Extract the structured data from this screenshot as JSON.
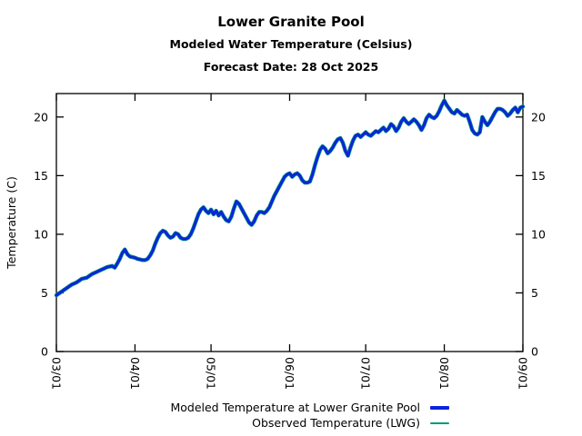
{
  "header": {
    "title": "Lower Granite Pool",
    "subtitle": "Modeled Water Temperature (Celsius)",
    "forecast_date_line": "Forecast Date: 28 Oct 2025"
  },
  "chart_data": {
    "type": "line",
    "title": "Lower Granite Pool",
    "subtitle": "Modeled Water Temperature (Celsius)",
    "annotation": "Forecast Date: 28 Oct 2025",
    "ylabel": "Temperature (C)",
    "xlabel": "",
    "ylim": [
      0,
      22
    ],
    "yticks": [
      0,
      5,
      10,
      15,
      20
    ],
    "yticks_mirrored_right": true,
    "xtick_labels": [
      "03/01",
      "04/01",
      "05/01",
      "06/01",
      "07/01",
      "08/01",
      "09/01"
    ],
    "xtick_days": [
      0,
      31,
      61,
      92,
      122,
      153,
      184
    ],
    "x_unit": "day index, daily samples from 03/01 (0) to 09/01 (184)",
    "grid": false,
    "legend_position": "bottom-right",
    "frame_color": "#000000",
    "series": [
      {
        "name": "Modeled Temperature at Lower Granite Pool",
        "color": "#0d24d8",
        "width": 3,
        "values": [
          4.8,
          4.95,
          5.1,
          5.25,
          5.4,
          5.55,
          5.7,
          5.8,
          5.9,
          6.05,
          6.2,
          6.25,
          6.3,
          6.45,
          6.6,
          6.7,
          6.8,
          6.9,
          7.0,
          7.1,
          7.2,
          7.25,
          7.3,
          7.15,
          7.5,
          7.9,
          8.4,
          8.7,
          8.3,
          8.1,
          8.05,
          8.0,
          7.9,
          7.85,
          7.8,
          7.8,
          7.9,
          8.2,
          8.6,
          9.2,
          9.7,
          10.1,
          10.3,
          10.2,
          9.9,
          9.7,
          9.8,
          10.1,
          10.0,
          9.7,
          9.6,
          9.6,
          9.7,
          10.0,
          10.5,
          11.1,
          11.7,
          12.1,
          12.3,
          12.0,
          11.8,
          12.1,
          11.7,
          12.0,
          11.6,
          11.9,
          11.5,
          11.2,
          11.1,
          11.5,
          12.2,
          12.8,
          12.6,
          12.2,
          11.8,
          11.4,
          11.0,
          10.8,
          11.1,
          11.6,
          11.9,
          11.9,
          11.8,
          12.0,
          12.3,
          12.8,
          13.3,
          13.7,
          14.1,
          14.5,
          14.9,
          15.1,
          15.2,
          14.9,
          15.1,
          15.2,
          15.0,
          14.6,
          14.4,
          14.4,
          14.5,
          15.1,
          15.9,
          16.6,
          17.2,
          17.5,
          17.3,
          16.9,
          17.1,
          17.4,
          17.8,
          18.1,
          18.2,
          17.8,
          17.1,
          16.7,
          17.4,
          18.0,
          18.4,
          18.5,
          18.3,
          18.5,
          18.7,
          18.5,
          18.4,
          18.6,
          18.8,
          18.7,
          18.9,
          19.1,
          18.8,
          19.0,
          19.4,
          19.2,
          18.8,
          19.1,
          19.6,
          19.9,
          19.6,
          19.4,
          19.6,
          19.8,
          19.6,
          19.3,
          18.9,
          19.3,
          19.9,
          20.2,
          20.0,
          19.9,
          20.1,
          20.5,
          21.0,
          21.4,
          21.0,
          20.7,
          20.4,
          20.3,
          20.6,
          20.4,
          20.2,
          20.1,
          20.2,
          19.6,
          18.9,
          18.6,
          18.5,
          18.7,
          20.0,
          19.6,
          19.3,
          19.6,
          20.0,
          20.4,
          20.7,
          20.7,
          20.6,
          20.4,
          20.1,
          20.3,
          20.6,
          20.8,
          20.4,
          20.8,
          20.9
        ]
      },
      {
        "name": "Observed Temperature (LWG)",
        "color": "#00987a",
        "width": 1,
        "same_as_modeled": true,
        "note": "observed trace lies almost entirely beneath the modeled line"
      }
    ]
  }
}
